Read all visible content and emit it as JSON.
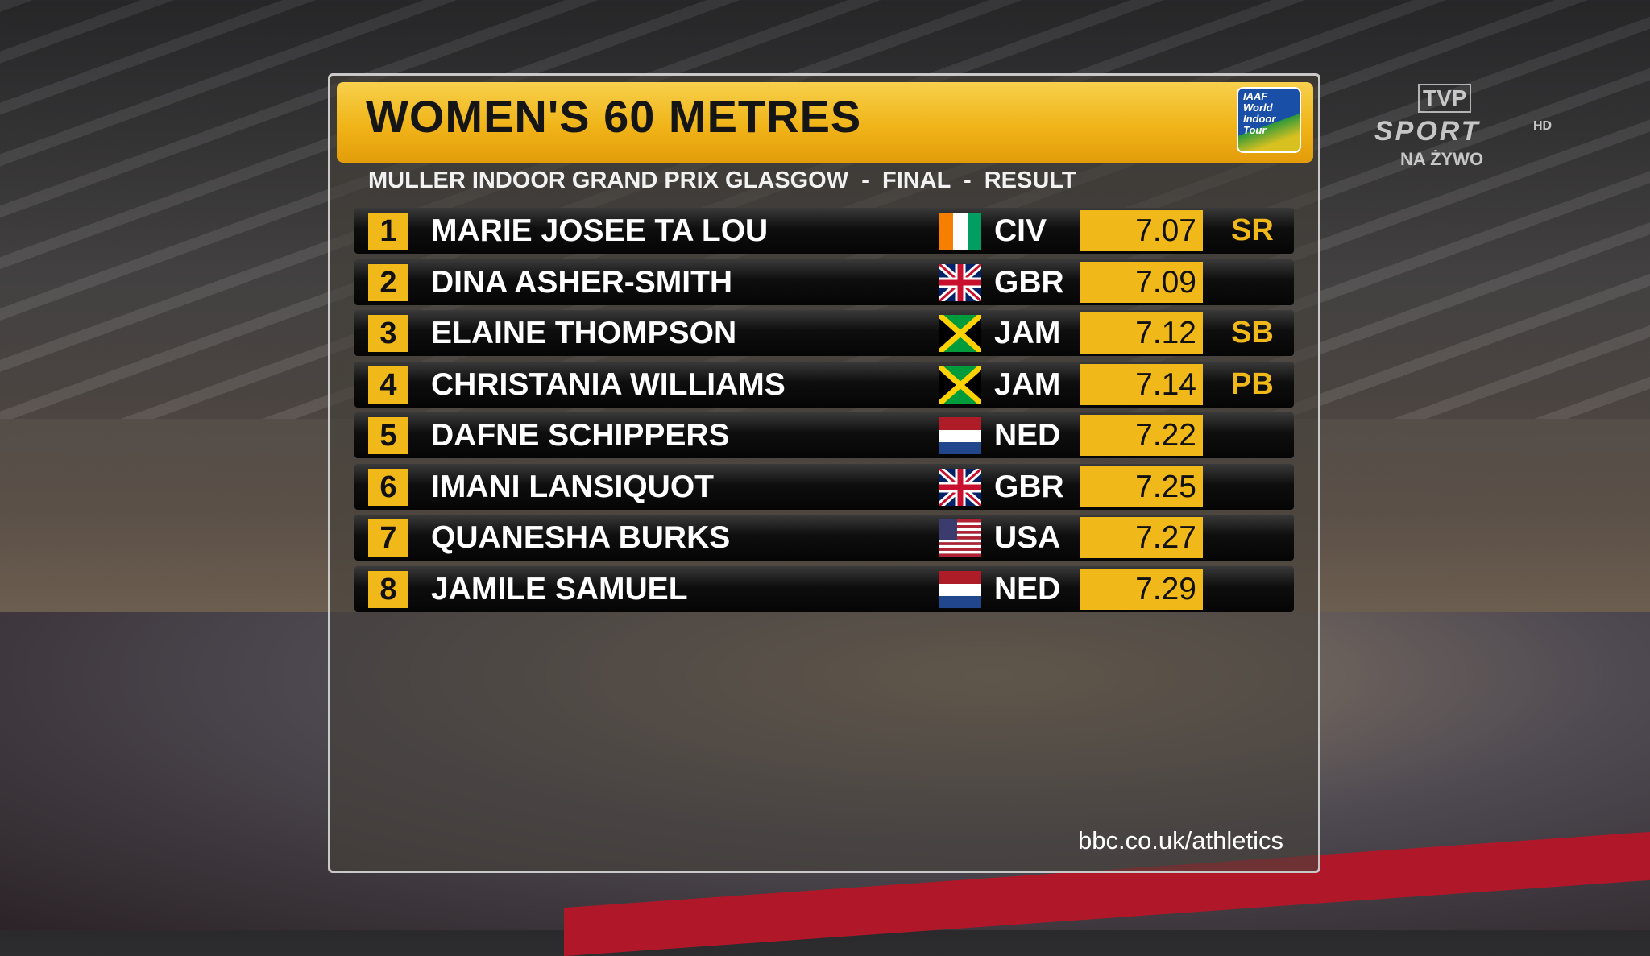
{
  "header": {
    "title": "WOMEN'S 60 METRES",
    "subtitle": "MULLER INDOOR GRAND PRIX GLASGOW  -  FINAL  -  RESULT",
    "logo": [
      "IAAF",
      "World",
      "Indoor",
      "Tour"
    ]
  },
  "broadcaster": {
    "name": "TVP",
    "channel": "SPORT",
    "hd": "HD",
    "live": "NA ŻYWO"
  },
  "table": {
    "rows": [
      [
        "1",
        "MARIE JOSEE TA LOU",
        "CIV",
        "7.07",
        "SR"
      ],
      [
        "2",
        "DINA ASHER-SMITH",
        "GBR",
        "7.09",
        null
      ],
      [
        "3",
        "ELAINE THOMPSON",
        "JAM",
        "7.12",
        "SB"
      ],
      [
        "4",
        "CHRISTANIA WILLIAMS",
        "JAM",
        "7.14",
        "PB"
      ],
      [
        "5",
        "DAFNE SCHIPPERS",
        "NED",
        "7.22",
        null
      ],
      [
        "6",
        "IMANI LANSIQUOT",
        "GBR",
        "7.25",
        null
      ],
      [
        "7",
        "QUANESHA BURKS",
        "USA",
        "7.27",
        null
      ],
      [
        "8",
        "JAMILE SAMUEL",
        "NED",
        "7.29",
        null
      ]
    ]
  },
  "footer": {
    "url": "bbc.co.uk/athletics"
  }
}
